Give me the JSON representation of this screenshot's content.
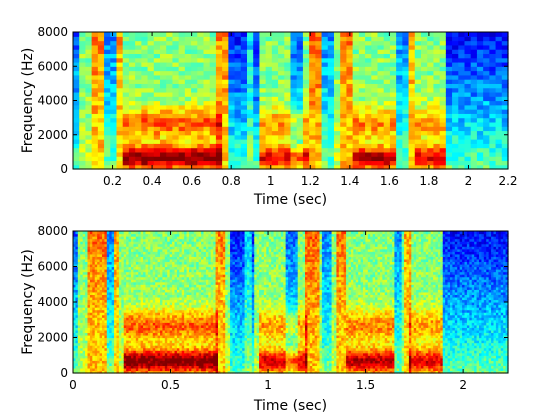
{
  "chart_data": [
    {
      "type": "heatmap",
      "title": "",
      "xlabel": "Time (sec)",
      "ylabel": "Frequency (Hz)",
      "xlim": [
        0,
        2.2
      ],
      "ylim": [
        0,
        8000
      ],
      "x_ticks": [
        0.2,
        0.4,
        0.6,
        0.8,
        1,
        1.2,
        1.4,
        1.6,
        1.8,
        2,
        2.2
      ],
      "x_tick_labels": [
        "0.2",
        "0.4",
        "0.6",
        "0.8",
        "1",
        "1.2",
        "1.4",
        "1.6",
        "1.8",
        "2",
        "2.2"
      ],
      "y_ticks": [
        0,
        2000,
        4000,
        6000,
        8000
      ],
      "y_tick_labels": [
        "0",
        "2000",
        "4000",
        "6000",
        "8000"
      ],
      "colormap": "jet",
      "time_frames": 70,
      "freq_bins": 32
    },
    {
      "type": "heatmap",
      "title": "",
      "xlabel": "Time (sec)",
      "ylabel": "Frequency (Hz)",
      "xlim": [
        0,
        2.23
      ],
      "ylim": [
        0,
        8000
      ],
      "x_ticks": [
        0,
        0.5,
        1,
        1.5,
        2
      ],
      "x_tick_labels": [
        "0",
        "0.5",
        "1",
        "1.5",
        "2"
      ],
      "y_ticks": [
        0,
        2000,
        4000,
        6000,
        8000
      ],
      "y_tick_labels": [
        "0",
        "2000",
        "4000",
        "6000",
        "8000"
      ],
      "colormap": "jet",
      "time_frames": 180,
      "freq_bins": 56
    }
  ]
}
